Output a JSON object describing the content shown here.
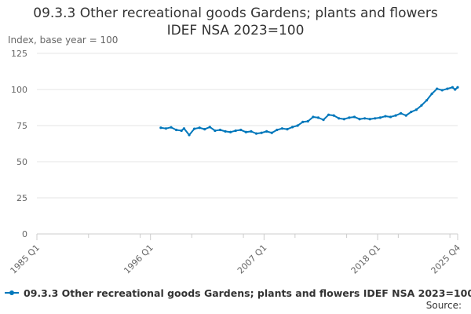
{
  "chart_data": {
    "type": "line",
    "title_line1": "09.3.3 Other recreational goods Gardens; plants and flowers",
    "title_line2": "IDEF NSA 2023=100",
    "ylabel": "Index, base year = 100",
    "ylim": [
      0,
      125
    ],
    "yticks": [
      "0",
      "25",
      "50",
      "75",
      "100",
      "125"
    ],
    "ytick_values": [
      0,
      25,
      50,
      75,
      100,
      125
    ],
    "xlim": [
      "1985 Q1",
      "2025 Q4"
    ],
    "xticks": [
      "1985 Q1",
      "1996 Q1",
      "2007 Q1",
      "2018 Q1",
      "2025 Q4"
    ],
    "grid": true,
    "legend_position": "bottom",
    "source_label": "Source:",
    "series": [
      {
        "name": "09.3.3 Other recreational goods Gardens; plants and flowers IDEF NSA 2023=100",
        "color": "#0077bb",
        "points": [
          [
            "1997 Q1",
            73.5
          ],
          [
            "1997 Q3",
            73.0
          ],
          [
            "1998 Q1",
            73.8
          ],
          [
            "1998 Q3",
            72.0
          ],
          [
            "1999 Q1",
            71.5
          ],
          [
            "1999 Q2",
            73.0
          ],
          [
            "1999 Q4",
            68.5
          ],
          [
            "2000 Q2",
            72.8
          ],
          [
            "2000 Q4",
            73.5
          ],
          [
            "2001 Q2",
            72.5
          ],
          [
            "2001 Q4",
            74.0
          ],
          [
            "2002 Q2",
            71.5
          ],
          [
            "2002 Q4",
            72.0
          ],
          [
            "2003 Q2",
            71.0
          ],
          [
            "2003 Q4",
            70.5
          ],
          [
            "2004 Q2",
            71.5
          ],
          [
            "2004 Q4",
            72.0
          ],
          [
            "2005 Q2",
            70.5
          ],
          [
            "2005 Q4",
            71.0
          ],
          [
            "2006 Q2",
            69.5
          ],
          [
            "2006 Q4",
            70.0
          ],
          [
            "2007 Q2",
            71.0
          ],
          [
            "2007 Q4",
            70.0
          ],
          [
            "2008 Q2",
            72.0
          ],
          [
            "2008 Q4",
            73.0
          ],
          [
            "2009 Q2",
            72.5
          ],
          [
            "2009 Q4",
            74.0
          ],
          [
            "2010 Q2",
            75.0
          ],
          [
            "2010 Q4",
            77.5
          ],
          [
            "2011 Q2",
            78.0
          ],
          [
            "2011 Q4",
            81.0
          ],
          [
            "2012 Q2",
            80.5
          ],
          [
            "2012 Q4",
            79.0
          ],
          [
            "2013 Q2",
            82.5
          ],
          [
            "2013 Q4",
            82.0
          ],
          [
            "2014 Q2",
            80.0
          ],
          [
            "2014 Q4",
            79.5
          ],
          [
            "2015 Q2",
            80.5
          ],
          [
            "2015 Q4",
            81.0
          ],
          [
            "2016 Q2",
            79.5
          ],
          [
            "2016 Q4",
            80.0
          ],
          [
            "2017 Q2",
            79.5
          ],
          [
            "2017 Q4",
            80.0
          ],
          [
            "2018 Q2",
            80.5
          ],
          [
            "2018 Q4",
            81.5
          ],
          [
            "2019 Q2",
            81.0
          ],
          [
            "2019 Q4",
            82.0
          ],
          [
            "2020 Q2",
            83.5
          ],
          [
            "2020 Q4",
            82.0
          ],
          [
            "2021 Q2",
            84.5
          ],
          [
            "2021 Q4",
            86.0
          ],
          [
            "2022 Q2",
            89.0
          ],
          [
            "2022 Q4",
            92.5
          ],
          [
            "2023 Q2",
            97.0
          ],
          [
            "2023 Q4",
            100.5
          ],
          [
            "2024 Q2",
            99.5
          ],
          [
            "2024 Q4",
            100.5
          ],
          [
            "2025 Q2",
            101.5
          ],
          [
            "2025 Q3",
            100.0
          ],
          [
            "2025 Q4",
            101.5
          ]
        ]
      }
    ]
  }
}
